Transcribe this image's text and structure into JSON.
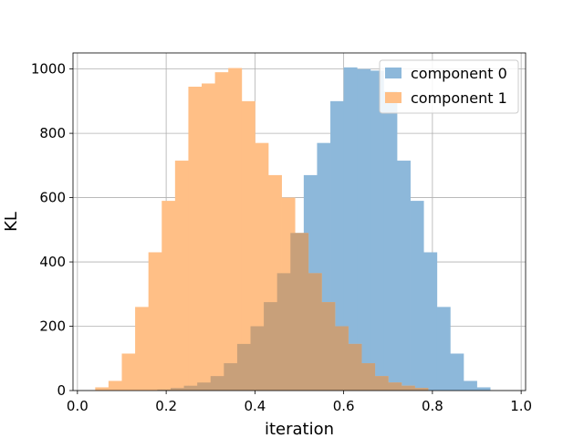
{
  "chart_data": {
    "type": "bar",
    "title": "",
    "xlabel": "iteration",
    "ylabel": "KL",
    "xlim": [
      -0.01,
      1.01
    ],
    "ylim": [
      0,
      1050
    ],
    "xticks": [
      0.0,
      0.2,
      0.4,
      0.6,
      0.8,
      1.0
    ],
    "xtick_labels": [
      "0.0",
      "0.2",
      "0.4",
      "0.6",
      "0.8",
      "1.0"
    ],
    "yticks": [
      0,
      200,
      400,
      600,
      800,
      1000
    ],
    "ytick_labels": [
      "0",
      "200",
      "400",
      "600",
      "800",
      "1000"
    ],
    "grid": true,
    "legend_position": "top-right",
    "overlap_color": "#c8a07a",
    "series": [
      {
        "name": "component 0",
        "color": "#8db8da",
        "bins": [
          {
            "x0": 0.18,
            "x1": 0.21,
            "count": 3
          },
          {
            "x0": 0.21,
            "x1": 0.24,
            "count": 8
          },
          {
            "x0": 0.24,
            "x1": 0.27,
            "count": 15
          },
          {
            "x0": 0.27,
            "x1": 0.3,
            "count": 25
          },
          {
            "x0": 0.3,
            "x1": 0.33,
            "count": 45
          },
          {
            "x0": 0.33,
            "x1": 0.36,
            "count": 85
          },
          {
            "x0": 0.36,
            "x1": 0.39,
            "count": 145
          },
          {
            "x0": 0.39,
            "x1": 0.42,
            "count": 200
          },
          {
            "x0": 0.42,
            "x1": 0.45,
            "count": 275
          },
          {
            "x0": 0.45,
            "x1": 0.48,
            "count": 365
          },
          {
            "x0": 0.48,
            "x1": 0.51,
            "count": 490
          },
          {
            "x0": 0.51,
            "x1": 0.54,
            "count": 670
          },
          {
            "x0": 0.54,
            "x1": 0.57,
            "count": 770
          },
          {
            "x0": 0.57,
            "x1": 0.6,
            "count": 900
          },
          {
            "x0": 0.6,
            "x1": 0.63,
            "count": 1005
          },
          {
            "x0": 0.63,
            "x1": 0.66,
            "count": 1000
          },
          {
            "x0": 0.66,
            "x1": 0.69,
            "count": 995
          },
          {
            "x0": 0.69,
            "x1": 0.72,
            "count": 930
          },
          {
            "x0": 0.72,
            "x1": 0.75,
            "count": 715
          },
          {
            "x0": 0.75,
            "x1": 0.78,
            "count": 590
          },
          {
            "x0": 0.78,
            "x1": 0.81,
            "count": 430
          },
          {
            "x0": 0.81,
            "x1": 0.84,
            "count": 260
          },
          {
            "x0": 0.84,
            "x1": 0.87,
            "count": 115
          },
          {
            "x0": 0.87,
            "x1": 0.9,
            "count": 30
          },
          {
            "x0": 0.9,
            "x1": 0.93,
            "count": 10
          }
        ]
      },
      {
        "name": "component 1",
        "color": "#ffbf86",
        "bins": [
          {
            "x0": 0.04,
            "x1": 0.07,
            "count": 10
          },
          {
            "x0": 0.07,
            "x1": 0.1,
            "count": 30
          },
          {
            "x0": 0.1,
            "x1": 0.13,
            "count": 115
          },
          {
            "x0": 0.13,
            "x1": 0.16,
            "count": 260
          },
          {
            "x0": 0.16,
            "x1": 0.19,
            "count": 430
          },
          {
            "x0": 0.19,
            "x1": 0.22,
            "count": 590
          },
          {
            "x0": 0.22,
            "x1": 0.25,
            "count": 715
          },
          {
            "x0": 0.25,
            "x1": 0.28,
            "count": 945
          },
          {
            "x0": 0.28,
            "x1": 0.31,
            "count": 955
          },
          {
            "x0": 0.31,
            "x1": 0.34,
            "count": 990
          },
          {
            "x0": 0.34,
            "x1": 0.37,
            "count": 1003
          },
          {
            "x0": 0.37,
            "x1": 0.4,
            "count": 900
          },
          {
            "x0": 0.4,
            "x1": 0.43,
            "count": 770
          },
          {
            "x0": 0.43,
            "x1": 0.46,
            "count": 670
          },
          {
            "x0": 0.46,
            "x1": 0.49,
            "count": 600
          },
          {
            "x0": 0.49,
            "x1": 0.52,
            "count": 490
          },
          {
            "x0": 0.52,
            "x1": 0.55,
            "count": 365
          },
          {
            "x0": 0.55,
            "x1": 0.58,
            "count": 275
          },
          {
            "x0": 0.58,
            "x1": 0.61,
            "count": 200
          },
          {
            "x0": 0.61,
            "x1": 0.64,
            "count": 145
          },
          {
            "x0": 0.64,
            "x1": 0.67,
            "count": 85
          },
          {
            "x0": 0.67,
            "x1": 0.7,
            "count": 45
          },
          {
            "x0": 0.7,
            "x1": 0.73,
            "count": 25
          },
          {
            "x0": 0.73,
            "x1": 0.76,
            "count": 15
          },
          {
            "x0": 0.76,
            "x1": 0.79,
            "count": 8
          }
        ]
      }
    ]
  }
}
